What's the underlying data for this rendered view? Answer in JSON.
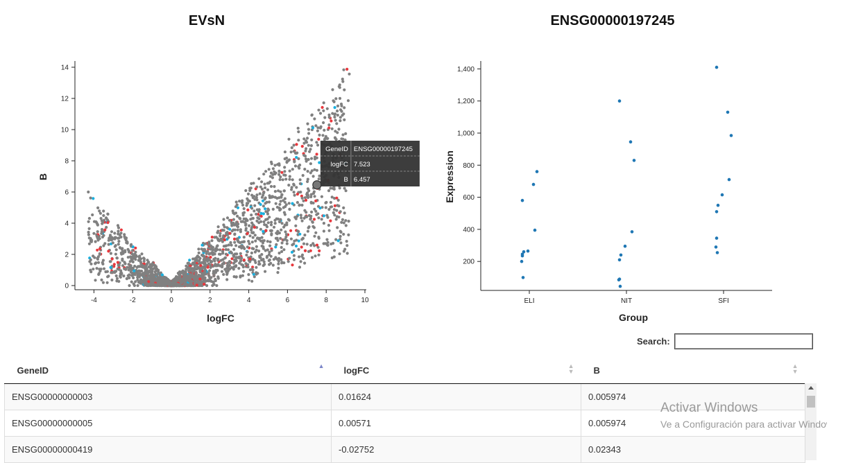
{
  "volcano": {
    "title": "EVsN",
    "xlabel": "logFC",
    "ylabel": "B",
    "xticks": [
      "-4",
      "-2",
      "0",
      "2",
      "4",
      "6",
      "8",
      "10"
    ],
    "yticks": [
      "0",
      "2",
      "4",
      "6",
      "8",
      "10",
      "12",
      "14"
    ],
    "colors": {
      "default": "#808080",
      "red": "#e8383d",
      "blue": "#1ab0df"
    },
    "selected_point": {
      "x": 7.523,
      "y": 6.457
    },
    "tooltip": [
      {
        "key": "GeneID",
        "value": "ENSG00000197245"
      },
      {
        "key": "logFC",
        "value": "7.523"
      },
      {
        "key": "B",
        "value": "6.457"
      }
    ]
  },
  "strip": {
    "title": "ENSG00000197245",
    "xlabel": "Group",
    "ylabel": "Expression",
    "categories": [
      "ELI",
      "NIT",
      "SFI"
    ],
    "yticks": [
      "200",
      "400",
      "600",
      "800",
      "1,000",
      "1,200",
      "1,400"
    ],
    "point_color": "#1f77b4"
  },
  "chart_data": [
    {
      "type": "scatter",
      "title": "EVsN",
      "xlabel": "logFC",
      "ylabel": "B",
      "xlim": [
        -4.8,
        10.2
      ],
      "ylim": [
        -0.3,
        14.3
      ],
      "highlighted_point": {
        "x": 7.523,
        "y": 6.457
      }
    },
    {
      "type": "scatter",
      "title": "ENSG00000197245",
      "xlabel": "Group",
      "ylabel": "Expression",
      "categories": [
        "ELI",
        "NIT",
        "SFI"
      ],
      "ylim": [
        30,
        1440
      ],
      "series": [
        {
          "category": "ELI",
          "values": [
            580,
            680,
            760,
            395,
            265,
            260,
            245,
            235,
            200,
            100
          ]
        },
        {
          "category": "NIT",
          "values": [
            1200,
            945,
            830,
            385,
            295,
            240,
            210,
            90,
            85,
            45
          ]
        },
        {
          "category": "SFI",
          "values": [
            1410,
            1130,
            985,
            710,
            615,
            550,
            510,
            345,
            290,
            255
          ]
        }
      ]
    }
  ],
  "search": {
    "label": "Search:",
    "value": ""
  },
  "table": {
    "columns": [
      "GeneID",
      "logFC",
      "B"
    ],
    "rows": [
      [
        "ENSG00000000003",
        "0.01624",
        "0.005974"
      ],
      [
        "ENSG00000000005",
        "0.00571",
        "0.005974"
      ],
      [
        "ENSG00000000419",
        "-0.02752",
        "0.02343"
      ]
    ]
  },
  "watermark": {
    "line1": "Activar Windows",
    "line2": "Ve a Configuración para activar Windows."
  }
}
